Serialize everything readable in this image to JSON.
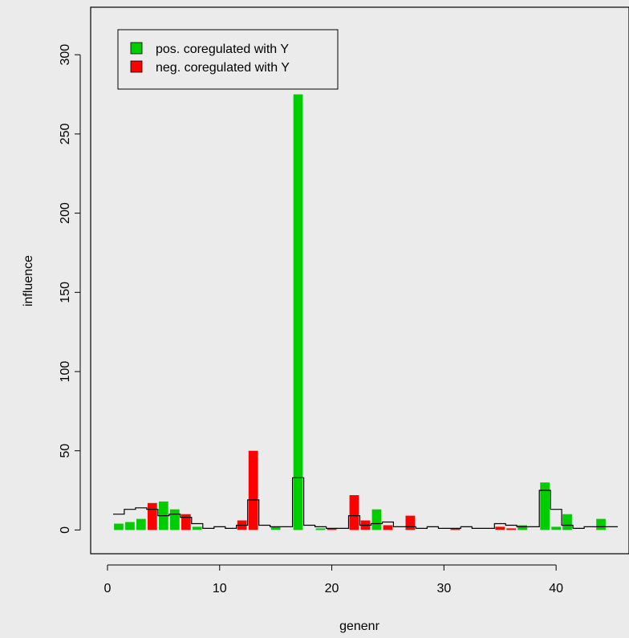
{
  "chart_data": {
    "type": "bar",
    "title": "",
    "xlabel": "genenr",
    "ylabel": "influence",
    "xlim": [
      -1.5,
      46.5
    ],
    "ylim": [
      -15,
      330
    ],
    "xticks": [
      0,
      10,
      20,
      30,
      40
    ],
    "yticks": [
      0,
      50,
      100,
      150,
      200,
      250,
      300
    ],
    "grid": false,
    "legend_position": "top-left",
    "colors": {
      "pos": "#00cd00",
      "neg": "#ff0000",
      "background": "#ebebeb",
      "outline": "#000000"
    },
    "series": [
      {
        "name": "pos. coregulated with Y",
        "key": "pos"
      },
      {
        "name": "neg. coregulated with Y",
        "key": "neg"
      }
    ],
    "bars": [
      {
        "gene": 1,
        "value": 4,
        "sign": "pos"
      },
      {
        "gene": 2,
        "value": 5,
        "sign": "pos"
      },
      {
        "gene": 3,
        "value": 7,
        "sign": "pos"
      },
      {
        "gene": 4,
        "value": 17,
        "sign": "neg"
      },
      {
        "gene": 5,
        "value": 18,
        "sign": "pos"
      },
      {
        "gene": 6,
        "value": 13,
        "sign": "pos"
      },
      {
        "gene": 7,
        "value": 10,
        "sign": "neg"
      },
      {
        "gene": 8,
        "value": 2,
        "sign": "pos"
      },
      {
        "gene": 12,
        "value": 6,
        "sign": "neg"
      },
      {
        "gene": 13,
        "value": 50,
        "sign": "neg"
      },
      {
        "gene": 15,
        "value": 2,
        "sign": "pos"
      },
      {
        "gene": 17,
        "value": 275,
        "sign": "pos"
      },
      {
        "gene": 19,
        "value": 1,
        "sign": "pos"
      },
      {
        "gene": 20,
        "value": 1,
        "sign": "neg"
      },
      {
        "gene": 22,
        "value": 22,
        "sign": "neg"
      },
      {
        "gene": 23,
        "value": 6,
        "sign": "neg"
      },
      {
        "gene": 24,
        "value": 13,
        "sign": "pos"
      },
      {
        "gene": 25,
        "value": 3,
        "sign": "neg"
      },
      {
        "gene": 27,
        "value": 9,
        "sign": "neg"
      },
      {
        "gene": 31,
        "value": 1,
        "sign": "neg"
      },
      {
        "gene": 35,
        "value": 2,
        "sign": "neg"
      },
      {
        "gene": 36,
        "value": 1,
        "sign": "neg"
      },
      {
        "gene": 37,
        "value": 3,
        "sign": "pos"
      },
      {
        "gene": 39,
        "value": 30,
        "sign": "pos"
      },
      {
        "gene": 40,
        "value": 2,
        "sign": "pos"
      },
      {
        "gene": 41,
        "value": 10,
        "sign": "pos"
      },
      {
        "gene": 44,
        "value": 7,
        "sign": "pos"
      }
    ],
    "step_line": {
      "genes": [
        1,
        2,
        3,
        4,
        5,
        6,
        7,
        8,
        9,
        10,
        11,
        12,
        13,
        14,
        15,
        16,
        17,
        18,
        19,
        20,
        21,
        22,
        23,
        24,
        25,
        26,
        27,
        28,
        29,
        30,
        31,
        32,
        33,
        34,
        35,
        36,
        37,
        38,
        39,
        40,
        41,
        42,
        43,
        44,
        45
      ],
      "values": [
        10,
        13,
        14,
        13,
        9,
        10,
        8,
        4,
        1,
        2,
        1,
        3,
        19,
        3,
        2,
        2,
        33,
        3,
        2,
        1,
        1,
        9,
        3,
        4,
        5,
        2,
        2,
        1,
        2,
        1,
        1,
        2,
        1,
        1,
        4,
        3,
        2,
        2,
        25,
        13,
        3,
        1,
        2,
        2,
        2
      ]
    }
  }
}
